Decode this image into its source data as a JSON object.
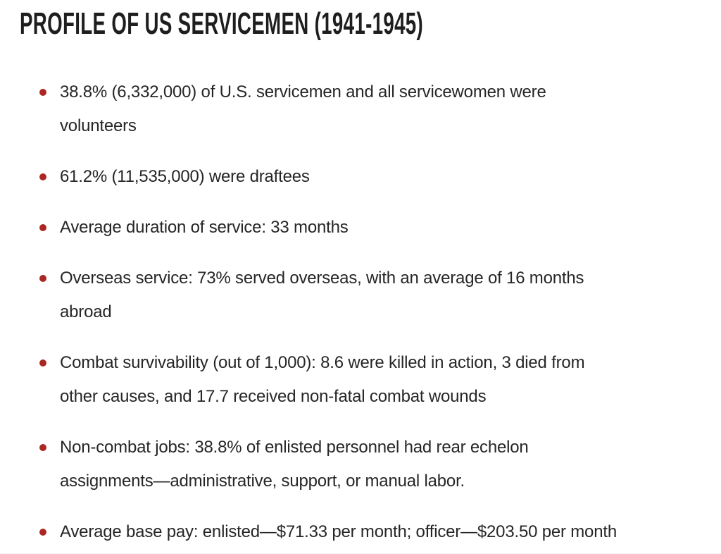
{
  "title": "PROFILE OF US SERVICEMEN (1941-1945)",
  "bullets": [
    {
      "lines": [
        "38.8% (6,332,000) of U.S. servicemen and all servicewomen were",
        "volunteers"
      ]
    },
    {
      "lines": [
        "61.2% (11,535,000) were draftees"
      ]
    },
    {
      "lines": [
        "Average duration of service: 33 months"
      ]
    },
    {
      "lines": [
        "Overseas service: 73% served overseas, with an average of 16 months",
        "abroad"
      ]
    },
    {
      "lines": [
        "Combat survivability (out of 1,000): 8.6 were killed in action, 3 died from",
        "other causes, and 17.7 received non-fatal combat wounds"
      ]
    },
    {
      "lines": [
        "Non-combat jobs: 38.8% of enlisted personnel had rear echelon",
        "assignments—administrative, support, or manual labor."
      ]
    },
    {
      "lines": [
        "Average base pay: enlisted—$71.33 per month; officer—$203.50 per month"
      ]
    }
  ],
  "colors": {
    "background": "#ffffff",
    "heading": "#1e1e1e",
    "body_text": "#262626",
    "bullet": "#aa2823",
    "bottom_strip": "#f2f2f2"
  }
}
